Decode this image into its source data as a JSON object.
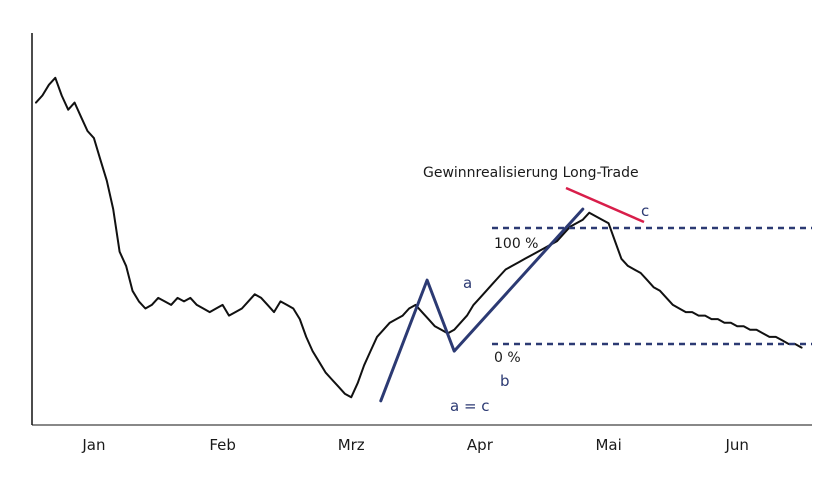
{
  "chart_data": {
    "type": "line",
    "title": "",
    "xlabel": "",
    "ylabel": "",
    "x_axis": {
      "months": [
        "Jan",
        "Feb",
        "Mrz",
        "Apr",
        "Mai",
        "Jun"
      ],
      "range": [
        0,
        6
      ]
    },
    "y_axis": {
      "tick_labels": [],
      "range": [
        0,
        100
      ]
    },
    "series": [
      {
        "x": [
          0.0,
          0.05,
          0.1,
          0.15,
          0.2,
          0.25,
          0.3,
          0.35,
          0.4,
          0.45,
          0.5,
          0.55,
          0.6,
          0.65,
          0.7,
          0.75,
          0.8,
          0.85,
          0.9,
          0.95,
          1.0,
          1.05,
          1.1,
          1.15,
          1.2,
          1.25,
          1.3,
          1.35,
          1.4,
          1.45,
          1.5,
          1.55,
          1.6,
          1.65,
          1.7,
          1.75,
          1.8,
          1.85,
          1.9,
          1.95,
          2.0,
          2.05,
          2.1,
          2.15,
          2.2,
          2.25,
          2.3,
          2.35,
          2.4,
          2.45,
          2.5,
          2.55,
          2.6,
          2.65,
          2.7,
          2.75,
          2.8,
          2.85,
          2.9,
          2.95,
          3.0,
          3.05,
          3.1,
          3.15,
          3.2,
          3.25,
          3.3,
          3.35,
          3.4,
          3.45,
          3.5,
          3.55,
          3.6,
          3.65,
          3.7,
          3.75,
          3.8,
          3.85,
          3.9,
          3.95,
          4.0,
          4.05,
          4.1,
          4.15,
          4.2,
          4.25,
          4.3,
          4.35,
          4.4,
          4.45,
          4.5,
          4.55,
          4.6,
          4.65,
          4.7,
          4.75,
          4.8,
          4.85,
          4.9,
          4.95,
          5.0,
          5.05,
          5.1,
          5.15,
          5.2,
          5.25,
          5.3,
          5.35,
          5.4,
          5.45,
          5.5,
          5.55,
          5.6,
          5.65,
          5.7,
          5.75,
          5.8,
          5.85,
          5.9,
          5.95
        ],
        "y": [
          88,
          90,
          93,
          95,
          90,
          86,
          88,
          84,
          80,
          78,
          72,
          66,
          58,
          46,
          42,
          35,
          32,
          30,
          31,
          33,
          32,
          31,
          33,
          32,
          33,
          31,
          30,
          29,
          30,
          31,
          28,
          29,
          30,
          32,
          34,
          33,
          31,
          29,
          32,
          31,
          30,
          27,
          22,
          18,
          15,
          12,
          10,
          8,
          6,
          5,
          9,
          14,
          18,
          22,
          24,
          26,
          27,
          28,
          30,
          31,
          29,
          27,
          25,
          24,
          23,
          24,
          26,
          28,
          31,
          33,
          35,
          37,
          39,
          41,
          42,
          43,
          44,
          45,
          46,
          47,
          48,
          49,
          51,
          53,
          54,
          55,
          57,
          56,
          55,
          54,
          49,
          44,
          42,
          41,
          40,
          38,
          36,
          35,
          33,
          31,
          30,
          29,
          29,
          28,
          28,
          27,
          27,
          26,
          26,
          25,
          25,
          24,
          24,
          23,
          22,
          22,
          21,
          20,
          20,
          19
        ],
        "color": "#111111"
      },
      {
        "x": [
          2.68,
          3.04,
          3.25,
          4.25
        ],
        "y": [
          4,
          38,
          18,
          58
        ],
        "color": "#2c3a73"
      }
    ],
    "reference_lines": [
      {
        "label": "100 %",
        "y_fraction": 1.0,
        "color": "#2c3a73",
        "style": "dashed"
      },
      {
        "label": "0 %",
        "y_fraction": 0.0,
        "color": "#2c3a73",
        "style": "dashed"
      }
    ],
    "point_labels": [
      "a",
      "b",
      "c"
    ],
    "annotations": {
      "profit_label": "Gewinnrealisierung Long-Trade",
      "profit_pointer_color": "#d81e4a",
      "equation": "a = c"
    },
    "grid": false,
    "legend": "none"
  }
}
